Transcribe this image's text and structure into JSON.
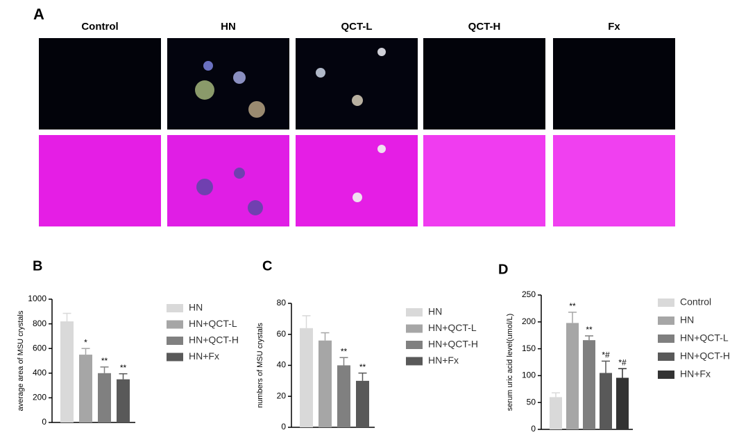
{
  "panel_a": {
    "label": "A",
    "columns": [
      "Control",
      "HN",
      "QCT-L",
      "QCT-H",
      "Fx"
    ]
  },
  "chart_data": [
    {
      "type": "bar",
      "panel_label": "B",
      "y_label": "average area of  MSU crystals",
      "ylim": [
        0,
        1000
      ],
      "yticks": [
        0,
        200,
        400,
        600,
        800,
        1000
      ],
      "series": [
        {
          "name": "HN",
          "color": "#d9d9d9",
          "values": [
            820
          ],
          "errors": [
            65
          ],
          "annotations": [
            null
          ]
        },
        {
          "name": "HN+QCT-L",
          "color": "#a6a6a6",
          "values": [
            550
          ],
          "errors": [
            50
          ],
          "annotations": [
            "*"
          ]
        },
        {
          "name": "HN+QCT-H",
          "color": "#808080",
          "values": [
            400
          ],
          "errors": [
            50
          ],
          "annotations": [
            "**"
          ]
        },
        {
          "name": "HN+Fx",
          "color": "#595959",
          "values": [
            350
          ],
          "errors": [
            45
          ],
          "annotations": [
            "**"
          ]
        }
      ]
    },
    {
      "type": "bar",
      "panel_label": "C",
      "y_label": "numbers of MSU crystals",
      "ylim": [
        0,
        80
      ],
      "yticks": [
        0,
        20,
        40,
        60,
        80
      ],
      "series": [
        {
          "name": "HN",
          "color": "#d9d9d9",
          "values": [
            64
          ],
          "errors": [
            8
          ],
          "annotations": [
            null
          ]
        },
        {
          "name": "HN+QCT-L",
          "color": "#a6a6a6",
          "values": [
            56
          ],
          "errors": [
            5
          ],
          "annotations": [
            null
          ]
        },
        {
          "name": "HN+QCT-H",
          "color": "#808080",
          "values": [
            40
          ],
          "errors": [
            5
          ],
          "annotations": [
            "**"
          ]
        },
        {
          "name": "HN+Fx",
          "color": "#595959",
          "values": [
            30
          ],
          "errors": [
            5
          ],
          "annotations": [
            "**"
          ]
        }
      ]
    },
    {
      "type": "bar",
      "panel_label": "D",
      "y_label": "serum uric acid level(umol/L)",
      "ylim": [
        0,
        250
      ],
      "yticks": [
        0,
        50,
        100,
        150,
        200,
        250
      ],
      "series": [
        {
          "name": "Control",
          "color": "#d9d9d9",
          "values": [
            60
          ],
          "errors": [
            8
          ],
          "annotations": [
            null
          ]
        },
        {
          "name": "HN",
          "color": "#a6a6a6",
          "values": [
            198
          ],
          "errors": [
            20
          ],
          "annotations": [
            "**"
          ]
        },
        {
          "name": "HN+QCT-L",
          "color": "#7f7f7f",
          "values": [
            166
          ],
          "errors": [
            8
          ],
          "annotations": [
            "**"
          ]
        },
        {
          "name": "HN+QCT-H",
          "color": "#595959",
          "values": [
            105
          ],
          "errors": [
            22
          ],
          "annotations": [
            "*#"
          ]
        },
        {
          "name": "HN+Fx",
          "color": "#333333",
          "values": [
            96
          ],
          "errors": [
            17
          ],
          "annotations": [
            "*#"
          ]
        }
      ]
    }
  ]
}
